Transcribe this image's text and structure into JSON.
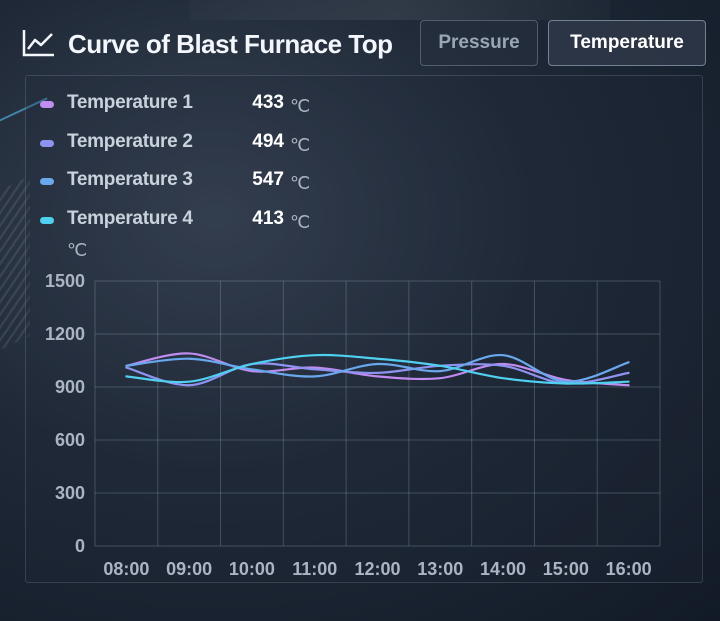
{
  "header": {
    "title": "Curve of Blast Furnace Top",
    "title_icon": "line-chart-icon",
    "tabs": [
      {
        "label": "Pressure",
        "active": false
      },
      {
        "label": "Temperature",
        "active": true
      }
    ]
  },
  "legend": {
    "items": [
      {
        "name": "Temperature 1",
        "value": "433",
        "unit": "℃",
        "color": "#c08cf0"
      },
      {
        "name": "Temperature 2",
        "value": "494",
        "unit": "℃",
        "color": "#8f93f0"
      },
      {
        "name": "Temperature 3",
        "value": "547",
        "unit": "℃",
        "color": "#6aa8ee"
      },
      {
        "name": "Temperature 4",
        "value": "413",
        "unit": "℃",
        "color": "#4fd0f0"
      }
    ]
  },
  "chart_data": {
    "type": "line",
    "ylabel": "℃",
    "ylim": [
      0,
      1500
    ],
    "yticks": [
      0,
      300,
      600,
      900,
      1200,
      1500
    ],
    "categories": [
      "08:00",
      "09:00",
      "10:00",
      "11:00",
      "12:00",
      "13:00",
      "14:00",
      "15:00",
      "16:00"
    ],
    "grid": true,
    "series": [
      {
        "name": "Temperature 1",
        "color": "#c08cf0",
        "values": [
          1020,
          1090,
          990,
          1010,
          960,
          950,
          1030,
          940,
          910
        ]
      },
      {
        "name": "Temperature 2",
        "color": "#8f93f0",
        "values": [
          1010,
          910,
          1030,
          1000,
          980,
          1020,
          1020,
          920,
          980
        ]
      },
      {
        "name": "Temperature 3",
        "color": "#6aa8ee",
        "values": [
          1020,
          1060,
          1000,
          960,
          1030,
          990,
          1080,
          930,
          1040
        ]
      },
      {
        "name": "Temperature 4",
        "color": "#4fd0f0",
        "values": [
          960,
          930,
          1030,
          1080,
          1060,
          1020,
          950,
          920,
          930
        ]
      }
    ]
  }
}
